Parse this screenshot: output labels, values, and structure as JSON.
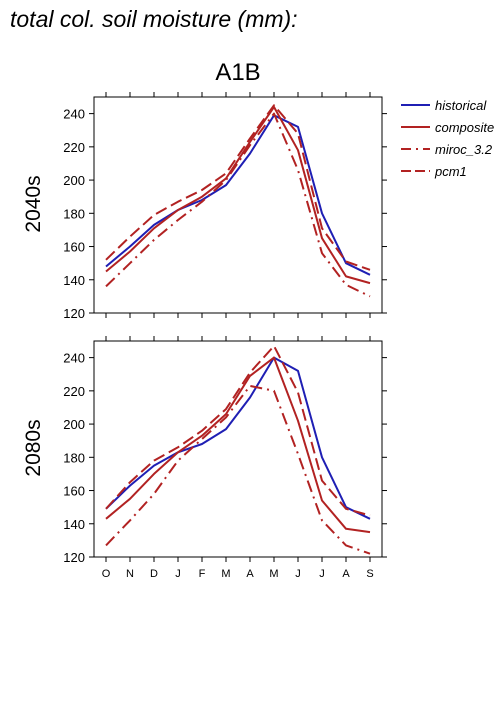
{
  "figure": {
    "title": "total col. soil moisture (mm):",
    "scenario": "A1B"
  },
  "legend": [
    {
      "name": "historical",
      "color": "#1f1fb4",
      "dash": "solid"
    },
    {
      "name": "composite",
      "color": "#b22222",
      "dash": "solid"
    },
    {
      "name": "miroc_3.2",
      "color": "#b22222",
      "dash": "dashdot"
    },
    {
      "name": "pcm1",
      "color": "#b22222",
      "dash": "dashed"
    }
  ],
  "chart_data": [
    {
      "type": "line",
      "title": "2040s",
      "xlabel": "",
      "ylabel": "",
      "categories": [
        "O",
        "N",
        "D",
        "J",
        "F",
        "M",
        "A",
        "M",
        "J",
        "J",
        "A",
        "S"
      ],
      "ylim": [
        120,
        250
      ],
      "yticks": [
        120,
        140,
        160,
        180,
        200,
        220,
        240
      ],
      "grid": false,
      "legend_position": "right",
      "series": [
        {
          "name": "historical",
          "values": [
            148,
            160,
            173,
            182,
            188,
            197,
            216,
            239,
            232,
            180,
            150,
            143
          ]
        },
        {
          "name": "composite",
          "values": [
            145,
            157,
            171,
            182,
            190,
            201,
            223,
            244,
            218,
            165,
            142,
            138
          ]
        },
        {
          "name": "miroc_3.2",
          "values": [
            136,
            150,
            164,
            176,
            187,
            200,
            221,
            240,
            206,
            156,
            137,
            130
          ]
        },
        {
          "name": "pcm1",
          "values": [
            152,
            166,
            179,
            187,
            194,
            204,
            225,
            245,
            228,
            171,
            151,
            146
          ]
        }
      ]
    },
    {
      "type": "line",
      "title": "2080s",
      "xlabel": "",
      "ylabel": "",
      "categories": [
        "O",
        "N",
        "D",
        "J",
        "F",
        "M",
        "A",
        "M",
        "J",
        "J",
        "A",
        "S"
      ],
      "ylim": [
        120,
        250
      ],
      "yticks": [
        120,
        140,
        160,
        180,
        200,
        220,
        240
      ],
      "grid": false,
      "legend_position": "none",
      "series": [
        {
          "name": "historical",
          "values": [
            149,
            163,
            175,
            183,
            188,
            197,
            216,
            240,
            232,
            180,
            150,
            143
          ]
        },
        {
          "name": "composite",
          "values": [
            143,
            155,
            170,
            183,
            193,
            206,
            229,
            240,
            202,
            154,
            137,
            135
          ]
        },
        {
          "name": "miroc_3.2",
          "values": [
            127,
            142,
            158,
            178,
            191,
            204,
            223,
            220,
            182,
            142,
            127,
            122
          ]
        },
        {
          "name": "pcm1",
          "values": [
            149,
            165,
            178,
            186,
            196,
            209,
            231,
            247,
            219,
            166,
            149,
            145
          ]
        }
      ]
    }
  ]
}
